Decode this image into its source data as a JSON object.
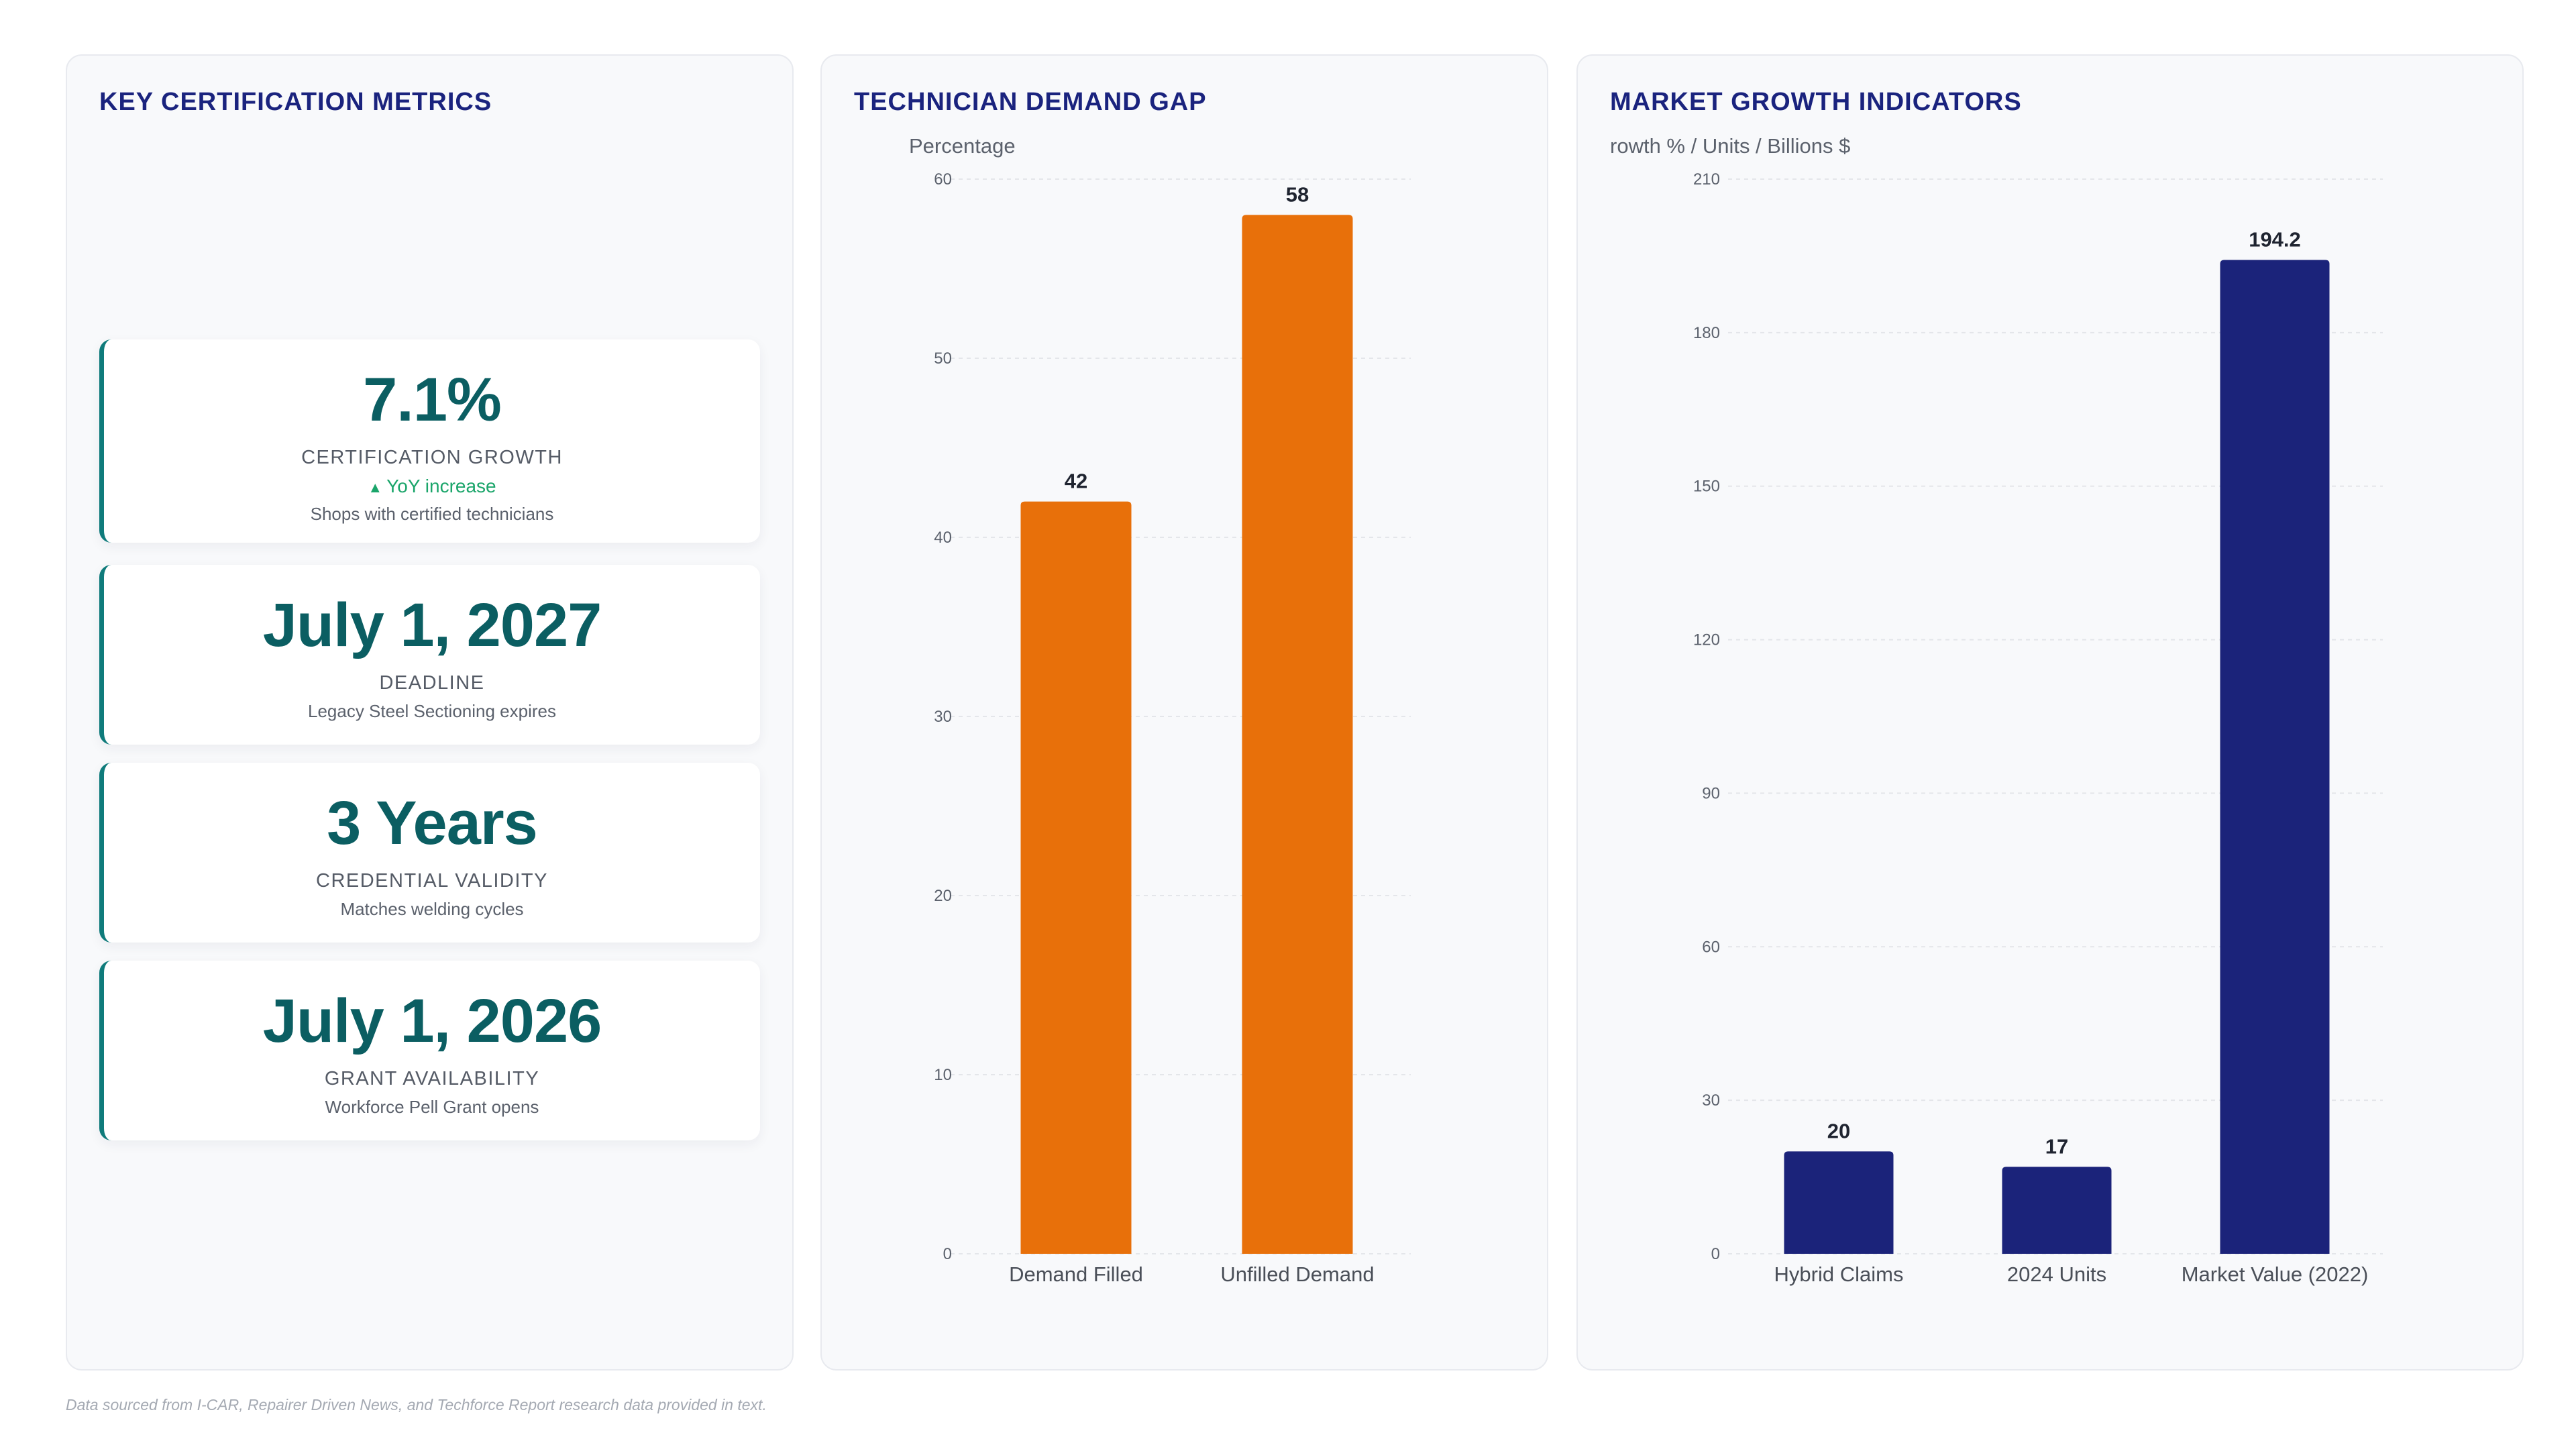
{
  "metrics_panel": {
    "title": "KEY CERTIFICATION METRICS",
    "cards": [
      {
        "value": "7.1%",
        "label": "CERTIFICATION GROWTH",
        "trend_arrow": "▲",
        "trend": "YoY increase",
        "desc": "Shops with certified technicians"
      },
      {
        "value": "July 1, 2027",
        "label": "DEADLINE",
        "desc": "Legacy Steel Sectioning expires"
      },
      {
        "value": "3 Years",
        "label": "CREDENTIAL VALIDITY",
        "desc": "Matches welding cycles"
      },
      {
        "value": "July 1, 2026",
        "label": "GRANT AVAILABILITY",
        "desc": "Workforce Pell Grant opens"
      }
    ]
  },
  "chart_data": [
    {
      "type": "bar",
      "title": "TECHNICIAN DEMAND GAP",
      "ylabel": "Percentage",
      "xlabel": "",
      "categories": [
        "Demand Filled",
        "Unfilled Demand"
      ],
      "values": [
        42,
        58
      ],
      "ylim": [
        0,
        60
      ],
      "yticks": [
        0,
        10,
        20,
        30,
        40,
        50,
        60
      ],
      "color": "#e8700a",
      "grid": true,
      "legend": "none"
    },
    {
      "type": "bar",
      "title": "MARKET GROWTH INDICATORS",
      "ylabel": "rowth % / Units / Billions $",
      "xlabel": "",
      "categories": [
        "Hybrid Claims",
        "2024 Units",
        "Market Value (2022)"
      ],
      "values": [
        20,
        17,
        194.2
      ],
      "ylim": [
        0,
        210
      ],
      "yticks": [
        0,
        30,
        60,
        90,
        120,
        150,
        180,
        210
      ],
      "color": "#1b237a",
      "grid": true,
      "legend": "none"
    }
  ],
  "footnote": "Data sourced from I-CAR, Repairer Driven News, and Techforce Report research data provided in text."
}
